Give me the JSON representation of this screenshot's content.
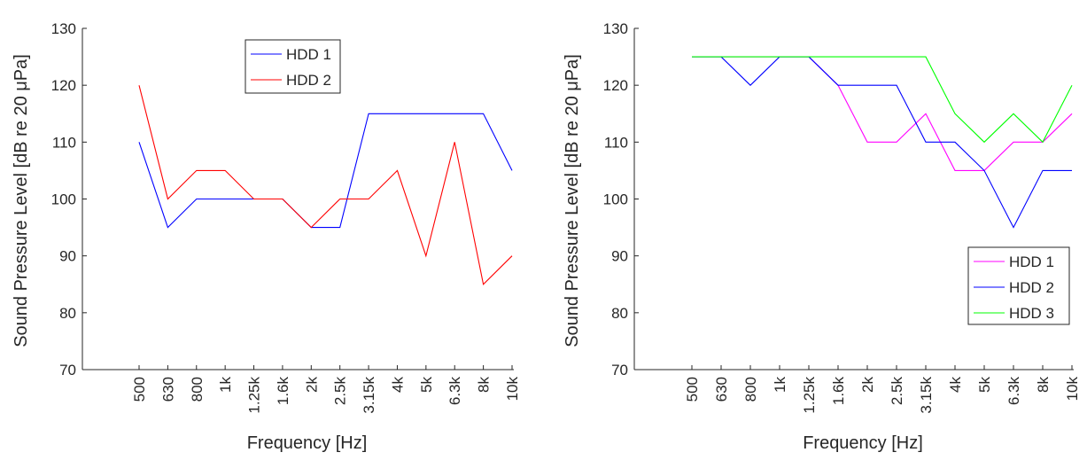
{
  "chart_data": [
    {
      "type": "line",
      "categories": [
        "500",
        "630",
        "800",
        "1k",
        "1.25k",
        "1.6k",
        "2k",
        "2.5k",
        "3.15k",
        "4k",
        "5k",
        "6.3k",
        "8k",
        "10k"
      ],
      "series": [
        {
          "name": "HDD 1",
          "color": "#0000ff",
          "values": [
            110,
            95,
            100,
            100,
            100,
            100,
            95,
            95,
            115,
            115,
            115,
            115,
            115,
            105
          ]
        },
        {
          "name": "HDD 2",
          "color": "#ff0000",
          "values": [
            120,
            100,
            105,
            105,
            100,
            100,
            95,
            100,
            100,
            105,
            90,
            110,
            85,
            90
          ]
        }
      ],
      "xlabel": "Frequency [Hz]",
      "ylabel": "Sound Pressure Level [dB re 20 μPa]",
      "ylim": [
        70,
        130
      ],
      "yticks": [
        70,
        80,
        90,
        100,
        110,
        120,
        130
      ],
      "legend": "top-center",
      "grid": false
    },
    {
      "type": "line",
      "categories": [
        "500",
        "630",
        "800",
        "1k",
        "1.25k",
        "1.6k",
        "2k",
        "2.5k",
        "3.15k",
        "4k",
        "5k",
        "6.3k",
        "8k",
        "10k"
      ],
      "series": [
        {
          "name": "HDD 1",
          "color": "#ff00ff",
          "values": [
            125,
            125,
            125,
            125,
            125,
            120,
            110,
            110,
            115,
            105,
            105,
            110,
            110,
            115
          ]
        },
        {
          "name": "HDD 2",
          "color": "#0000ff",
          "values": [
            125,
            125,
            120,
            125,
            125,
            120,
            120,
            120,
            110,
            110,
            105,
            95,
            105,
            105
          ]
        },
        {
          "name": "HDD 3",
          "color": "#00ff00",
          "values": [
            125,
            125,
            125,
            125,
            125,
            125,
            125,
            125,
            125,
            115,
            110,
            115,
            110,
            120
          ]
        }
      ],
      "xlabel": "Frequency [Hz]",
      "ylabel": "Sound Pressure Level [dB re 20 μPa]",
      "ylim": [
        70,
        130
      ],
      "yticks": [
        70,
        80,
        90,
        100,
        110,
        120,
        130
      ],
      "legend": "bottom-right",
      "grid": false
    }
  ]
}
